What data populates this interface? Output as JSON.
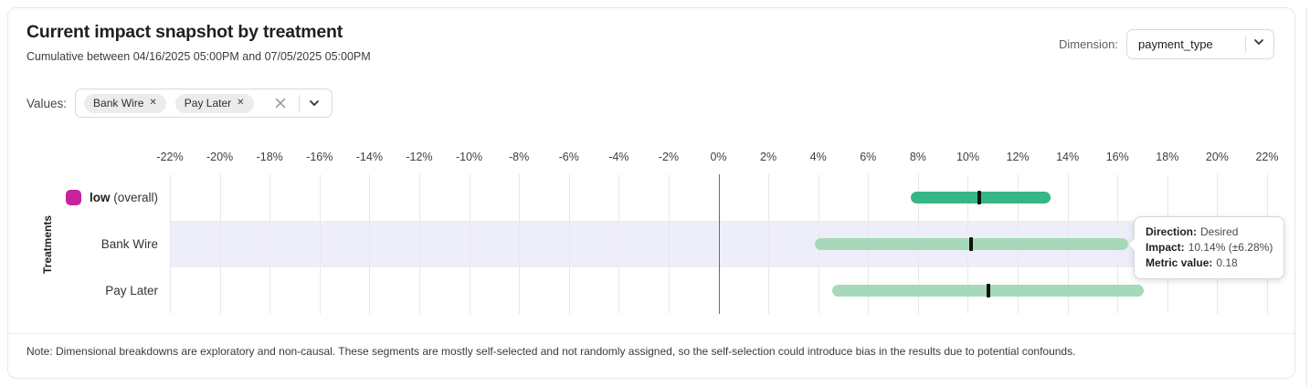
{
  "header": {
    "title": "Current impact snapshot by treatment",
    "subtitle": "Cumulative between 04/16/2025 05:00PM and 07/05/2025 05:00PM",
    "dimension_label": "Dimension:",
    "dimension_value": "payment_type"
  },
  "filters": {
    "values_label": "Values:",
    "chips": [
      {
        "label": "Bank Wire"
      },
      {
        "label": "Pay Later"
      }
    ]
  },
  "icons": {
    "chip_remove": "✕"
  },
  "chart_data": {
    "type": "bar",
    "subtype": "horizontal-interval",
    "title": "Current impact snapshot by treatment",
    "xlabel": "",
    "ylabel": "Treatments",
    "xlim": [
      -22,
      22
    ],
    "grid": true,
    "x_ticks": [
      -22,
      -20,
      -18,
      -16,
      -14,
      -12,
      -10,
      -8,
      -6,
      -4,
      -2,
      0,
      2,
      4,
      6,
      8,
      10,
      12,
      14,
      16,
      18,
      20,
      22
    ],
    "x_tick_labels": [
      "-22%",
      "-20%",
      "-18%",
      "-16%",
      "-14%",
      "-12%",
      "-10%",
      "-8%",
      "-6%",
      "-4%",
      "-2%",
      "0%",
      "2%",
      "4%",
      "6%",
      "8%",
      "10%",
      "12%",
      "14%",
      "16%",
      "18%",
      "20%",
      "22%"
    ],
    "rows": [
      {
        "id": "low-overall",
        "label": "low",
        "label_bold": true,
        "suffix": "(overall)",
        "legend_color": "#ca219c",
        "bar_color": "#35b785",
        "impact_pct": 10.45,
        "ci_low_pct": 7.7,
        "ci_high_pct": 13.3,
        "highlighted": false
      },
      {
        "id": "bank-wire",
        "label": "Bank Wire",
        "label_bold": false,
        "suffix": "",
        "legend_color": "",
        "bar_color": "#a6d9b9",
        "impact_pct": 10.14,
        "ci_low_pct": 3.86,
        "ci_high_pct": 16.42,
        "highlighted": true
      },
      {
        "id": "pay-later",
        "label": "Pay Later",
        "label_bold": false,
        "suffix": "",
        "legend_color": "",
        "bar_color": "#a6d9b9",
        "impact_pct": 10.82,
        "ci_low_pct": 4.57,
        "ci_high_pct": 17.05,
        "highlighted": false
      }
    ],
    "colors": {
      "highlight_band": "#eeeefa",
      "marker": "#111111",
      "grid": "#e9e9e9",
      "zero_line": "#6e6e6e"
    }
  },
  "tooltip": {
    "row": "Bank Wire",
    "lines": [
      {
        "label": "Direction:",
        "value": "Desired"
      },
      {
        "label": "Impact:",
        "value": "10.14% (±6.28%)"
      },
      {
        "label": "Metric value:",
        "value": "0.18"
      }
    ]
  },
  "footer": {
    "note": "Note: Dimensional breakdowns are exploratory and non-causal. These segments are mostly self-selected and not randomly assigned, so the self-selection could introduce bias in the results due to potential confounds."
  }
}
